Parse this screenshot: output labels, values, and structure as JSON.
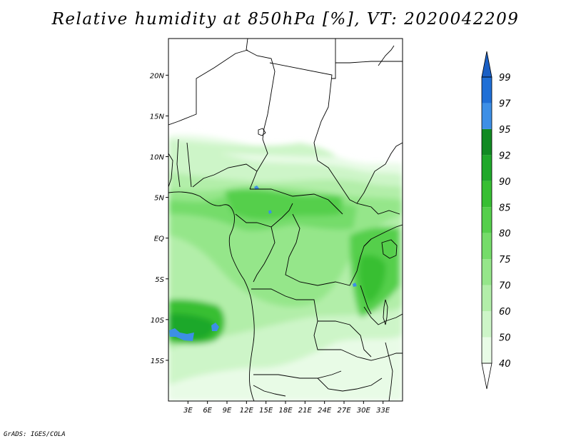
{
  "title": "Relative humidity at 850hPa [%], VT: 2020042209",
  "credit": "GrADS: IGES/COLA",
  "map": {
    "lon_range": [
      0,
      36
    ],
    "lat_range": [
      -20,
      24.5
    ],
    "lat_ticks": [
      {
        "value": 20,
        "label": "20N"
      },
      {
        "value": 15,
        "label": "15N"
      },
      {
        "value": 10,
        "label": "10N"
      },
      {
        "value": 5,
        "label": "5N"
      },
      {
        "value": 0,
        "label": "EQ"
      },
      {
        "value": -5,
        "label": "5S"
      },
      {
        "value": -10,
        "label": "10S"
      },
      {
        "value": -15,
        "label": "15S"
      }
    ],
    "lon_ticks": [
      {
        "value": 3,
        "label": "3E"
      },
      {
        "value": 6,
        "label": "6E"
      },
      {
        "value": 9,
        "label": "9E"
      },
      {
        "value": 12,
        "label": "12E"
      },
      {
        "value": 15,
        "label": "15E"
      },
      {
        "value": 18,
        "label": "18E"
      },
      {
        "value": 21,
        "label": "21E"
      },
      {
        "value": 24,
        "label": "24E"
      },
      {
        "value": 27,
        "label": "27E"
      },
      {
        "value": 30,
        "label": "30E"
      },
      {
        "value": 33,
        "label": "33E"
      }
    ]
  },
  "colorbar": {
    "levels": [
      {
        "label": "40",
        "color": "#ffffff"
      },
      {
        "label": "50",
        "color": "#e8fbe6"
      },
      {
        "label": "60",
        "color": "#cdf5c8"
      },
      {
        "label": "70",
        "color": "#b2eea9"
      },
      {
        "label": "75",
        "color": "#95e68a"
      },
      {
        "label": "80",
        "color": "#75dc6a"
      },
      {
        "label": "85",
        "color": "#55cf4c"
      },
      {
        "label": "90",
        "color": "#37bf33"
      },
      {
        "label": "92",
        "color": "#1fa82a"
      },
      {
        "label": "95",
        "color": "#118a22"
      },
      {
        "label": "97",
        "color": "#3d8fe6"
      },
      {
        "label": "99",
        "color": "#1f6fd6"
      }
    ],
    "top_color": "#1a5fc4"
  }
}
